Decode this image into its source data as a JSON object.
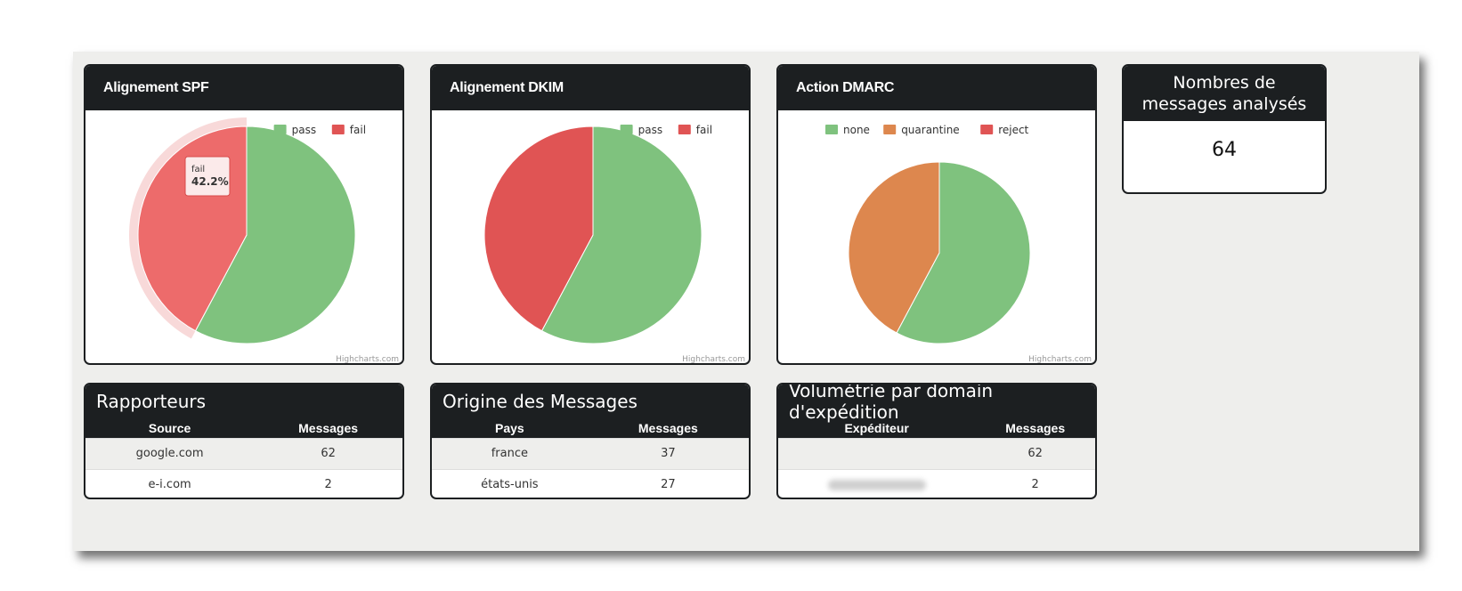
{
  "charts": {
    "spf": {
      "title": "Alignement SPF",
      "credits": "Highcharts.com",
      "tooltip": {
        "label": "fail",
        "value": "42.2%"
      }
    },
    "dkim": {
      "title": "Alignement DKIM",
      "credits": "Highcharts.com"
    },
    "dmarc": {
      "title": "Action DMARC",
      "credits": "Highcharts.com"
    }
  },
  "chart_data": [
    {
      "type": "pie",
      "title": "Alignement SPF",
      "legend_position": "top-right",
      "series": [
        {
          "name": "pass",
          "value": 57.8,
          "color": "#7fc27e"
        },
        {
          "name": "fail",
          "value": 42.2,
          "color": "#e05454"
        }
      ]
    },
    {
      "type": "pie",
      "title": "Alignement DKIM",
      "legend_position": "top-right",
      "series": [
        {
          "name": "pass",
          "value": 57.8,
          "color": "#7fc27e"
        },
        {
          "name": "fail",
          "value": 42.2,
          "color": "#e05454"
        }
      ]
    },
    {
      "type": "pie",
      "title": "Action DMARC",
      "legend_position": "top-center",
      "series": [
        {
          "name": "none",
          "value": 57.8,
          "color": "#7fc27e"
        },
        {
          "name": "quarantine",
          "value": 42.2,
          "color": "#dd874e"
        },
        {
          "name": "reject",
          "value": 0,
          "color": "#e05454"
        }
      ]
    }
  ],
  "count": {
    "title": "Nombres de messages analysés",
    "value": "64"
  },
  "tables": {
    "rapporteurs": {
      "title": "Rapporteurs",
      "headers": [
        "Source",
        "Messages"
      ],
      "rows": [
        [
          "google.com",
          "62"
        ],
        [
          "e-i.com",
          "2"
        ]
      ]
    },
    "origine": {
      "title": "Origine des Messages",
      "headers": [
        "Pays",
        "Messages"
      ],
      "rows": [
        [
          "france",
          "37"
        ],
        [
          "états-unis",
          "27"
        ]
      ]
    },
    "volumetrie": {
      "title": "Volumétrie par domain d'expédition",
      "headers": [
        "Expéditeur",
        "Messages"
      ],
      "rows": [
        [
          "",
          "62"
        ],
        [
          "",
          "2"
        ]
      ]
    }
  }
}
